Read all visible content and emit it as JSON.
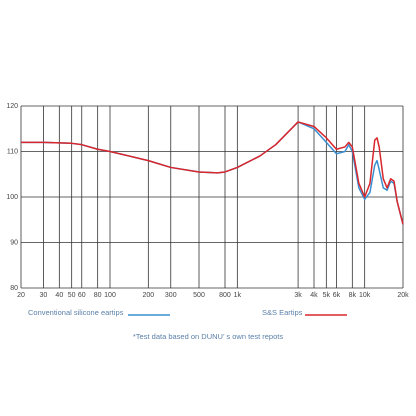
{
  "chart_data": {
    "type": "line",
    "x": [
      20,
      30,
      50,
      60,
      80,
      100,
      200,
      300,
      500,
      700,
      800,
      1000,
      1500,
      2000,
      3000,
      4000,
      5000,
      6000,
      7000,
      7500,
      8000,
      9000,
      10000,
      11000,
      12000,
      12500,
      13000,
      14000,
      15000,
      16000,
      17000,
      18000,
      20000
    ],
    "series": [
      {
        "name": "Conventional silicone eartips",
        "color": "#3a8fd0",
        "values": [
          112,
          112,
          111.8,
          111.5,
          110.5,
          110,
          108,
          106.5,
          105.5,
          105.3,
          105.5,
          106.5,
          109,
          111.5,
          116.5,
          115,
          112,
          109.5,
          110,
          111.5,
          110,
          102,
          99.5,
          101,
          107,
          108,
          106,
          102,
          101.5,
          103.5,
          103,
          99,
          94
        ]
      },
      {
        "name": "S&S Eartips",
        "color": "#d9262c",
        "values": [
          112,
          112,
          111.8,
          111.5,
          110.5,
          110,
          108,
          106.5,
          105.5,
          105.3,
          105.5,
          106.5,
          109,
          111.5,
          116.5,
          115.5,
          113,
          110.5,
          111,
          112,
          111,
          103,
          100,
          103,
          112.5,
          113,
          111,
          104,
          102,
          104,
          103.5,
          99,
          94
        ]
      }
    ],
    "xlim": [
      20,
      20000
    ],
    "log_x": true,
    "xticks": [
      20,
      30,
      40,
      50,
      60,
      80,
      100,
      200,
      300,
      500,
      800,
      {
        "value": 1000,
        "label": "1k"
      },
      {
        "value": 3000,
        "label": "3k"
      },
      {
        "value": 4000,
        "label": "4k"
      },
      {
        "value": 5000,
        "label": "5k"
      },
      {
        "value": 6000,
        "label": "6k"
      },
      {
        "value": 8000,
        "label": "8k"
      },
      {
        "value": 10000,
        "label": "10k"
      },
      {
        "value": 20000,
        "label": "20k"
      }
    ],
    "ylim": [
      80,
      120
    ],
    "yticks": [
      80,
      90,
      100,
      110,
      120
    ],
    "grid": true,
    "note": "*Test data based on DUNU’ s own test repots"
  }
}
